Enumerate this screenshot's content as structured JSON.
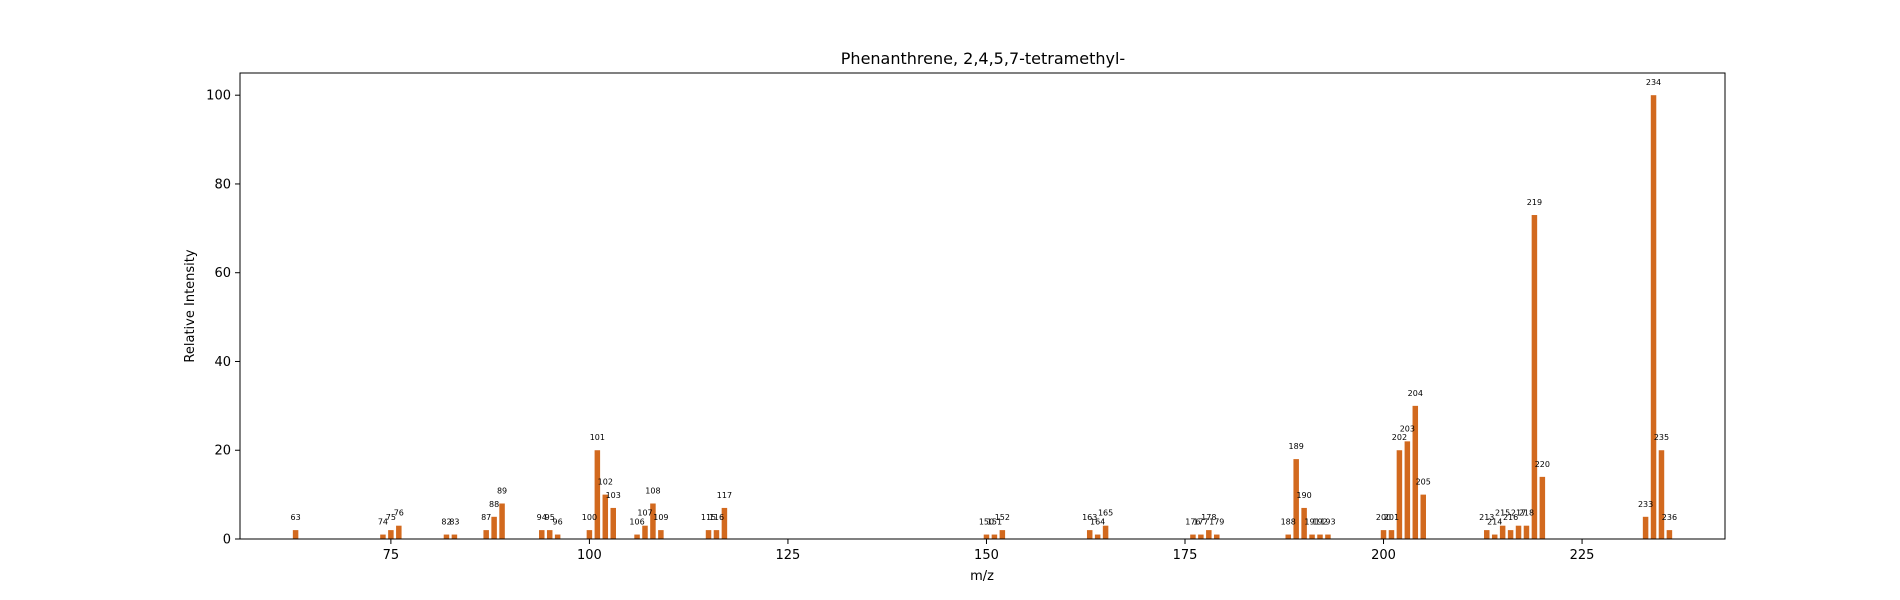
{
  "chart_data": {
    "type": "bar",
    "title": "Phenanthrene, 2,4,5,7-tetramethyl-",
    "xlabel": "m/z",
    "ylabel": "Relative Intensity",
    "xlim": [
      56,
      243
    ],
    "ylim": [
      0,
      105
    ],
    "xticks": [
      75,
      100,
      125,
      150,
      175,
      200,
      225
    ],
    "yticks": [
      0,
      20,
      40,
      60,
      80,
      100
    ],
    "grid": false,
    "bar_color": "#d2691e",
    "x": [
      63,
      74,
      75,
      76,
      82,
      83,
      87,
      88,
      89,
      94,
      95,
      96,
      100,
      101,
      102,
      103,
      106,
      107,
      108,
      109,
      115,
      116,
      117,
      150,
      151,
      152,
      163,
      164,
      165,
      176,
      177,
      178,
      179,
      188,
      189,
      190,
      191,
      192,
      193,
      200,
      201,
      202,
      203,
      204,
      205,
      213,
      214,
      215,
      216,
      217,
      218,
      219,
      220,
      233,
      234,
      235,
      236
    ],
    "values": [
      2,
      1,
      2,
      3,
      1,
      1,
      2,
      5,
      8,
      2,
      2,
      1,
      2,
      20,
      10,
      7,
      1,
      3,
      8,
      2,
      2,
      2,
      7,
      1,
      1,
      2,
      2,
      1,
      3,
      1,
      1,
      2,
      1,
      1,
      18,
      7,
      1,
      1,
      1,
      2,
      2,
      20,
      22,
      30,
      10,
      2,
      1,
      3,
      2,
      3,
      3,
      73,
      14,
      5,
      100,
      20,
      2
    ],
    "labels": [
      "63",
      "74",
      "75",
      "76",
      "82",
      "83",
      "87",
      "88",
      "89",
      "94",
      "95",
      "96",
      "100",
      "101",
      "102",
      "103",
      "106",
      "107",
      "108",
      "109",
      "115",
      "116",
      "117",
      "150",
      "151",
      "152",
      "163",
      "164",
      "165",
      "176",
      "177",
      "178",
      "179",
      "188",
      "189",
      "190",
      "191",
      "192",
      "193",
      "200",
      "201",
      "202",
      "203",
      "204",
      "205",
      "213",
      "214",
      "215",
      "216",
      "217",
      "218",
      "219",
      "220",
      "233",
      "234",
      "235",
      "236"
    ]
  }
}
